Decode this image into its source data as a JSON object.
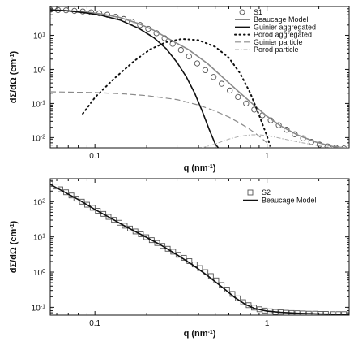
{
  "chart_data": [
    {
      "type": "line",
      "x_scale": "log",
      "y_scale": "log",
      "xlim": [
        0.055,
        3.0
      ],
      "ylim": [
        0.005,
        70
      ],
      "xticks": [
        {
          "v": 0.1,
          "label": "0.1"
        },
        {
          "v": 1,
          "label": "1"
        }
      ],
      "yticks": [
        {
          "v": 10,
          "base": "10",
          "exp": "1"
        },
        {
          "v": 1,
          "base": "10",
          "exp": "0"
        },
        {
          "v": 0.1,
          "base": "10",
          "exp": "-1"
        },
        {
          "v": 0.01,
          "base": "10",
          "exp": "-2"
        }
      ],
      "xlabel": {
        "text": "q (nm",
        "exp": "-1",
        "end": ")"
      },
      "ylabel": {
        "text": "dΣ/dΩ (cm",
        "exp": "-1",
        "end": ")"
      },
      "legend_position": "top-right",
      "series": [
        {
          "name": "S1",
          "style": "circle-markers",
          "x": [
            0.055,
            0.061,
            0.068,
            0.076,
            0.085,
            0.095,
            0.106,
            0.118,
            0.132,
            0.147,
            0.164,
            0.183,
            0.204,
            0.228,
            0.254,
            0.283,
            0.316,
            0.352,
            0.393,
            0.438,
            0.489,
            0.545,
            0.608,
            0.678,
            0.756,
            0.843,
            0.94,
            1.05,
            1.17,
            1.3,
            1.45,
            1.62,
            1.81,
            2.02,
            2.25,
            2.51,
            2.8
          ],
          "y": [
            56,
            55,
            54,
            52,
            50,
            47,
            44,
            40,
            35,
            30,
            25,
            20,
            15.5,
            11.5,
            8.2,
            5.6,
            3.7,
            2.4,
            1.5,
            0.95,
            0.6,
            0.38,
            0.24,
            0.155,
            0.1,
            0.066,
            0.045,
            0.032,
            0.023,
            0.017,
            0.0125,
            0.0095,
            0.0075,
            0.0062,
            0.0055,
            0.005,
            0.0048
          ]
        },
        {
          "name": "Beaucage Model",
          "style": "solid-gray",
          "x": [
            0.055,
            0.07,
            0.09,
            0.11,
            0.14,
            0.18,
            0.22,
            0.28,
            0.35,
            0.45,
            0.55,
            0.7,
            0.85,
            1.0,
            1.2,
            1.5,
            1.9,
            2.4,
            3.0
          ],
          "y": [
            56,
            53,
            48,
            42,
            33,
            22,
            14,
            7,
            3.8,
            1.5,
            0.6,
            0.2,
            0.085,
            0.042,
            0.022,
            0.012,
            0.0075,
            0.0055,
            0.0048
          ]
        },
        {
          "name": "Guinier aggregated",
          "style": "solid-black",
          "x": [
            0.055,
            0.07,
            0.09,
            0.11,
            0.14,
            0.18,
            0.22,
            0.26,
            0.3,
            0.34,
            0.38,
            0.42,
            0.46,
            0.5,
            0.53
          ],
          "y": [
            56,
            52,
            45,
            38,
            28,
            16,
            8.5,
            4.0,
            1.6,
            0.6,
            0.2,
            0.06,
            0.018,
            0.0065,
            0.0045
          ]
        },
        {
          "name": "Porod aggregated",
          "style": "dotted-black",
          "x": [
            0.085,
            0.1,
            0.13,
            0.17,
            0.21,
            0.26,
            0.32,
            0.4,
            0.5,
            0.6,
            0.7,
            0.8,
            0.9,
            1.0,
            1.05
          ],
          "y": [
            0.05,
            0.15,
            0.55,
            1.8,
            3.9,
            6.3,
            7.8,
            7.2,
            4.6,
            2.2,
            0.75,
            0.2,
            0.045,
            0.011,
            0.005
          ]
        },
        {
          "name": "Guinier particle",
          "style": "dashed-gray",
          "x": [
            0.055,
            0.1,
            0.15,
            0.2,
            0.3,
            0.4,
            0.5,
            0.6,
            0.7,
            0.8,
            0.9,
            1.0,
            1.05
          ],
          "y": [
            0.22,
            0.21,
            0.19,
            0.17,
            0.13,
            0.09,
            0.06,
            0.04,
            0.026,
            0.017,
            0.011,
            0.007,
            0.005
          ]
        },
        {
          "name": "Porod particle",
          "style": "dashdot-lightgray",
          "x": [
            0.42,
            0.5,
            0.6,
            0.7,
            0.8,
            0.9,
            1.0,
            1.2,
            1.5,
            1.9,
            2.4,
            2.8
          ],
          "y": [
            0.005,
            0.0065,
            0.009,
            0.011,
            0.012,
            0.012,
            0.0115,
            0.0095,
            0.0075,
            0.006,
            0.005,
            0.0047
          ]
        }
      ]
    },
    {
      "type": "line",
      "x_scale": "log",
      "y_scale": "log",
      "xlim": [
        0.055,
        3.0
      ],
      "ylim": [
        0.06,
        450
      ],
      "xticks": [
        {
          "v": 0.1,
          "label": "0.1"
        },
        {
          "v": 1,
          "label": "1"
        }
      ],
      "yticks": [
        {
          "v": 100,
          "base": "10",
          "exp": "2"
        },
        {
          "v": 10,
          "base": "10",
          "exp": "1"
        },
        {
          "v": 1,
          "base": "10",
          "exp": "0"
        },
        {
          "v": 0.1,
          "base": "10",
          "exp": "-1"
        }
      ],
      "xlabel": {
        "text": "q (nm",
        "exp": "-1",
        "end": ")"
      },
      "ylabel": {
        "text": "dΣ/dΩ (cm",
        "exp": "-1",
        "end": ")"
      },
      "legend_position": "top-right",
      "series": [
        {
          "name": "S2",
          "style": "square-markers",
          "x": [
            0.055,
            0.059,
            0.063,
            0.068,
            0.073,
            0.078,
            0.084,
            0.09,
            0.097,
            0.104,
            0.112,
            0.12,
            0.129,
            0.139,
            0.149,
            0.16,
            0.172,
            0.185,
            0.199,
            0.214,
            0.23,
            0.247,
            0.265,
            0.285,
            0.306,
            0.329,
            0.354,
            0.38,
            0.408,
            0.439,
            0.472,
            0.507,
            0.545,
            0.586,
            0.63,
            0.677,
            0.727,
            0.782,
            0.84,
            0.903,
            0.97,
            1.04,
            1.12,
            1.2,
            1.29,
            1.39,
            1.5,
            1.62,
            1.75,
            1.9,
            2.05,
            2.2,
            2.4,
            2.6,
            2.8
          ],
          "y": [
            320,
            270,
            225,
            185,
            150,
            122,
            100,
            82,
            67,
            55,
            45,
            37,
            30.5,
            25.2,
            20.8,
            17.3,
            14.3,
            11.8,
            9.8,
            8.1,
            6.7,
            5.55,
            4.6,
            3.8,
            3.1,
            2.55,
            2.05,
            1.65,
            1.3,
            1.0,
            0.77,
            0.58,
            0.43,
            0.32,
            0.24,
            0.18,
            0.14,
            0.115,
            0.098,
            0.088,
            0.081,
            0.077,
            0.074,
            0.072,
            0.07,
            0.069,
            0.068,
            0.067,
            0.066,
            0.066,
            0.065,
            0.065,
            0.064,
            0.064,
            0.064
          ]
        },
        {
          "name": "Beaucage Model",
          "style": "solid-black",
          "x": [
            0.055,
            0.065,
            0.08,
            0.1,
            0.12,
            0.15,
            0.19,
            0.24,
            0.3,
            0.37,
            0.45,
            0.55,
            0.65,
            0.75,
            0.85,
            1.0,
            1.2,
            1.5,
            2.0,
            2.5,
            3.0
          ],
          "y": [
            310,
            200,
            115,
            60,
            37,
            20,
            11,
            6,
            3.1,
            1.6,
            0.8,
            0.37,
            0.19,
            0.12,
            0.092,
            0.078,
            0.072,
            0.068,
            0.065,
            0.064,
            0.063
          ]
        }
      ]
    }
  ]
}
